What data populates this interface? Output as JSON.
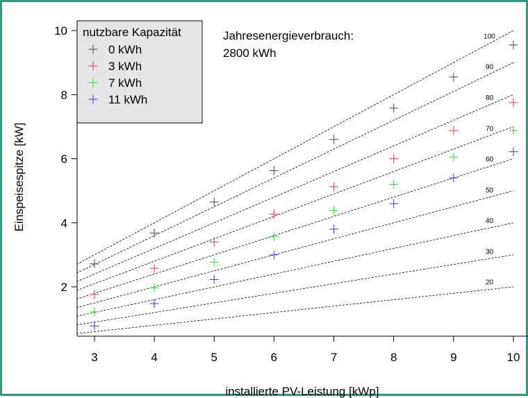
{
  "chart_data": {
    "type": "scatter",
    "xlabel": "installierte PV-Leistung [kWp]",
    "ylabel": "Einspeisespitze [kW]",
    "xlim": [
      2.7,
      10.3
    ],
    "ylim": [
      0.65,
      10.4
    ],
    "xticks": [
      "3",
      "4",
      "5",
      "6",
      "7",
      "8",
      "9",
      "10"
    ],
    "yticks": [
      "2",
      "4",
      "6",
      "8",
      "10"
    ],
    "grid": false,
    "annotation": "Jahresenergieverbrauch:\n2800 kWh",
    "annotation_lines": [
      "Jahresenergieverbrauch:",
      "2800 kWh"
    ],
    "legend": {
      "title": "nutzbare Kapazität",
      "placement": "top-left",
      "entries": [
        "0 kWh",
        "3 kWh",
        "7 kWh",
        "11 kWh"
      ]
    },
    "x": [
      3,
      4,
      5,
      6,
      7,
      8,
      9,
      10
    ],
    "series": [
      {
        "name": "0 kWh",
        "color": "#555555",
        "values": [
          2.72,
          3.68,
          4.65,
          5.63,
          6.6,
          7.58,
          8.55,
          9.55
        ]
      },
      {
        "name": "3 kWh",
        "color": "#ff4040",
        "values": [
          1.76,
          2.58,
          3.4,
          4.27,
          5.13,
          6.0,
          6.88,
          7.75
        ]
      },
      {
        "name": "7 kWh",
        "color": "#40dd40",
        "values": [
          1.22,
          1.97,
          2.77,
          3.57,
          4.38,
          5.2,
          6.05,
          6.88
        ]
      },
      {
        "name": "11 kWh",
        "color": "#4444ff",
        "values": [
          0.78,
          1.48,
          2.23,
          3.0,
          3.8,
          4.6,
          5.4,
          6.22
        ]
      }
    ],
    "reference_lines": [
      {
        "label": "100",
        "slope": 1.0
      },
      {
        "label": "90",
        "slope": 0.9
      },
      {
        "label": "80",
        "slope": 0.8
      },
      {
        "label": "70",
        "slope": 0.7
      },
      {
        "label": "60",
        "slope": 0.6
      },
      {
        "label": "50",
        "slope": 0.5
      },
      {
        "label": "40",
        "slope": 0.4
      },
      {
        "label": "30",
        "slope": 0.3
      },
      {
        "label": "20",
        "slope": 0.2
      }
    ]
  }
}
